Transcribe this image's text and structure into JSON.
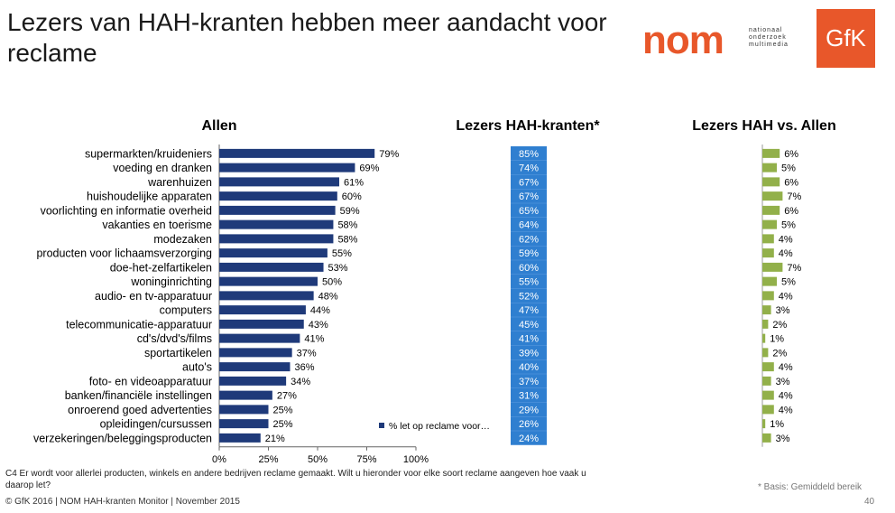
{
  "header": {
    "title": "Lezers van HAH-kranten hebben meer aandacht voor reclame",
    "nom_logo_text": "nom",
    "nom_logo_sub": [
      "nationaal",
      "onderzoek",
      "multimedia"
    ],
    "gfk_logo_text": "GfK"
  },
  "colors": {
    "navy_bar": "#1f3a7a",
    "blue_cell": "#2f7fd0",
    "green_bar": "#92b04a",
    "brand_orange": "#e8572a"
  },
  "chart_data": [
    {
      "type": "bar",
      "orientation": "horizontal",
      "title": "Allen",
      "categories": [
        "supermarkten/kruideniers",
        "voeding en dranken",
        "warenhuizen",
        "huishoudelijke apparaten",
        "voorlichting en informatie overheid",
        "vakanties en toerisme",
        "modezaken",
        "producten voor lichaamsverzorging",
        "doe-het-zelfartikelen",
        "woninginrichting",
        "audio- en tv-apparatuur",
        "computers",
        "telecommunicatie-apparatuur",
        "cd's/dvd's/films",
        "sportartikelen",
        "auto's",
        "foto- en videoapparatuur",
        "banken/financiële instellingen",
        "onroerend goed advertenties",
        "opleidingen/cursussen",
        "verzekeringen/beleggingsproducten"
      ],
      "values": [
        79,
        69,
        61,
        60,
        59,
        58,
        58,
        55,
        53,
        50,
        48,
        44,
        43,
        41,
        37,
        36,
        34,
        27,
        25,
        25,
        21
      ],
      "value_labels": [
        "79%",
        "69%",
        "61%",
        "60%",
        "59%",
        "58%",
        "58%",
        "55%",
        "53%",
        "50%",
        "48%",
        "44%",
        "43%",
        "41%",
        "37%",
        "36%",
        "34%",
        "27%",
        "25%",
        "25%",
        "21%"
      ],
      "xlim": [
        0,
        100
      ],
      "ticks": [
        "0%",
        "25%",
        "50%",
        "75%",
        "100%"
      ],
      "legend": "% let op reclame voor…"
    },
    {
      "type": "table",
      "title": "Lezers HAH-kranten*",
      "values": [
        "85%",
        "74%",
        "67%",
        "67%",
        "65%",
        "64%",
        "62%",
        "59%",
        "60%",
        "55%",
        "52%",
        "47%",
        "45%",
        "41%",
        "39%",
        "40%",
        "37%",
        "31%",
        "29%",
        "26%",
        "24%"
      ]
    },
    {
      "type": "bar",
      "orientation": "horizontal",
      "title": "Lezers HAH vs. Allen",
      "values": [
        6,
        5,
        6,
        7,
        6,
        5,
        4,
        4,
        7,
        5,
        4,
        3,
        2,
        1,
        2,
        4,
        3,
        4,
        4,
        1,
        3
      ],
      "value_labels": [
        "6%",
        "5%",
        "6%",
        "7%",
        "6%",
        "5%",
        "4%",
        "4%",
        "7%",
        "5%",
        "4%",
        "3%",
        "2%",
        "1%",
        "2%",
        "4%",
        "3%",
        "4%",
        "4%",
        "1%",
        "3%"
      ]
    }
  ],
  "footer": {
    "question": "C4  Er wordt voor allerlei producten, winkels en andere bedrijven reclame gemaakt. Wilt u hieronder voor elke soort reclame aangeven hoe vaak u daarop let?",
    "basis": "* Basis: Gemiddeld bereik",
    "copyright": "© GfK 2016 | NOM HAH-kranten Monitor | November 2015",
    "page": "40"
  }
}
